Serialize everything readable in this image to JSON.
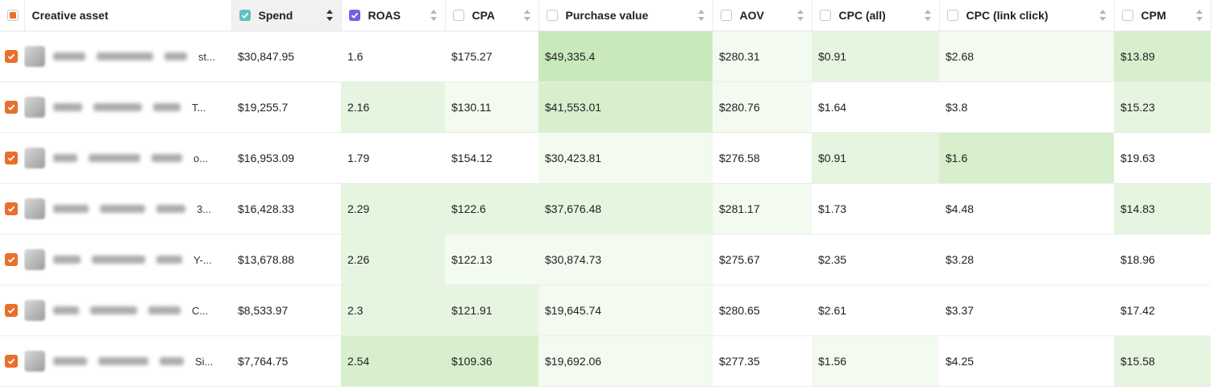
{
  "columns": [
    {
      "label": "Creative asset"
    },
    {
      "label": "Spend"
    },
    {
      "label": "ROAS"
    },
    {
      "label": "CPA"
    },
    {
      "label": "Purchase value"
    },
    {
      "label": "AOV"
    },
    {
      "label": "CPC (all)"
    },
    {
      "label": "CPC (link click)"
    },
    {
      "label": "CPM"
    }
  ],
  "rows": [
    {
      "creative": "st...",
      "spend": "$30,847.95",
      "roas": "1.6",
      "cpa": "$175.27",
      "purchase_value": "$49,335.4",
      "aov": "$280.31",
      "cpc_all": "$0.91",
      "cpc_link": "$2.68",
      "cpm": "$13.89"
    },
    {
      "creative": "T...",
      "spend": "$19,255.7",
      "roas": "2.16",
      "cpa": "$130.11",
      "purchase_value": "$41,553.01",
      "aov": "$280.76",
      "cpc_all": "$1.64",
      "cpc_link": "$3.8",
      "cpm": "$15.23"
    },
    {
      "creative": "o...",
      "spend": "$16,953.09",
      "roas": "1.79",
      "cpa": "$154.12",
      "purchase_value": "$30,423.81",
      "aov": "$276.58",
      "cpc_all": "$0.91",
      "cpc_link": "$1.6",
      "cpm": "$19.63"
    },
    {
      "creative": "3...",
      "spend": "$16,428.33",
      "roas": "2.29",
      "cpa": "$122.6",
      "purchase_value": "$37,676.48",
      "aov": "$281.17",
      "cpc_all": "$1.73",
      "cpc_link": "$4.48",
      "cpm": "$14.83"
    },
    {
      "creative": "Y-...",
      "spend": "$13,678.88",
      "roas": "2.26",
      "cpa": "$122.13",
      "purchase_value": "$30,874.73",
      "aov": "$275.67",
      "cpc_all": "$2.35",
      "cpc_link": "$3.28",
      "cpm": "$18.96"
    },
    {
      "creative": "C...",
      "spend": "$8,533.97",
      "roas": "2.3",
      "cpa": "$121.91",
      "purchase_value": "$19,645.74",
      "aov": "$280.65",
      "cpc_all": "$2.61",
      "cpc_link": "$3.37",
      "cpm": "$17.42"
    },
    {
      "creative": "Si...",
      "spend": "$7,764.75",
      "roas": "2.54",
      "cpa": "$109.36",
      "purchase_value": "$19,692.06",
      "aov": "$277.35",
      "cpc_all": "$1.56",
      "cpc_link": "$4.25",
      "cpm": "$15.58"
    }
  ],
  "colors": {
    "row_checkbox": "#e8702a",
    "spend_checkbox": "#5fc1bf",
    "roas_checkbox": "#6e63e6",
    "heat_light": "#f3faf0",
    "heat_strong": "#c9e8bc"
  }
}
